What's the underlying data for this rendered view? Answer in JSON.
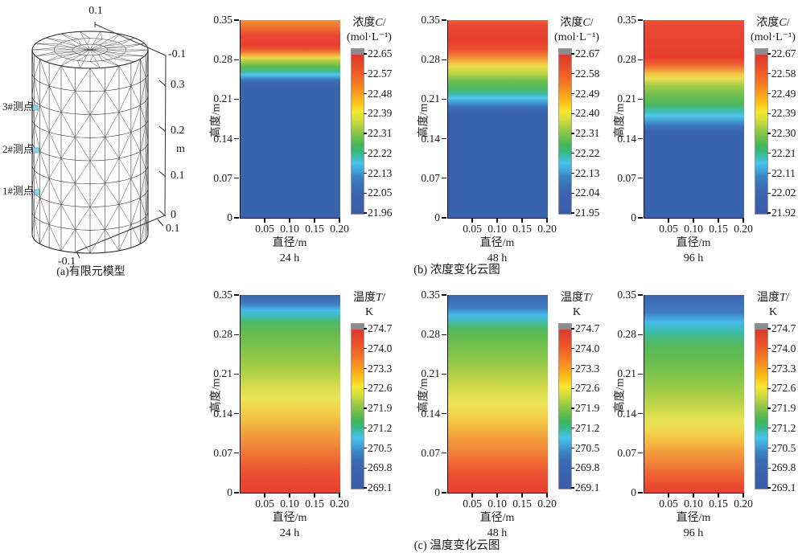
{
  "figure": {
    "model_panel": {
      "caption": "(a)有限元模型",
      "probes": [
        "3#测点",
        "2#测点",
        "1#测点"
      ],
      "axis": {
        "top": "0.1",
        "right_labels": [
          "-0.1",
          "0.3",
          "0.2",
          "0.1",
          "0"
        ],
        "unit": "m",
        "near_bottom": "0.1",
        "bottom": "-0.1"
      }
    },
    "captions": {
      "b": "(b) 浓度变化云图",
      "c": "(c) 温度变化云图"
    }
  },
  "chart_data": [
    {
      "type": "heatmap",
      "group": "concentration",
      "time_label": "24 h",
      "xlabel": "直径/m",
      "ylabel": "高度/m",
      "xlim": [
        0,
        0.2
      ],
      "ylim": [
        0,
        0.35
      ],
      "x_ticks": [
        0.05,
        0.1,
        0.15,
        0.2
      ],
      "x_tick_labels": [
        "0.05",
        "0.10",
        "0.15",
        "0.20"
      ],
      "y_ticks": [
        0,
        0.07,
        0.14,
        0.21,
        0.28,
        0.35
      ],
      "y_tick_labels": [
        "0",
        "0.07",
        "0.14",
        "0.21",
        "0.28",
        "0.35"
      ],
      "colorbar": {
        "title_prefix": "浓度",
        "title_var": "C",
        "title_slash": "/",
        "title_unit": "(mol·L⁻¹)",
        "tick_labels": [
          "22.65",
          "22.57",
          "22.48",
          "22.39",
          "22.31",
          "22.22",
          "22.13",
          "22.05",
          "21.96"
        ]
      },
      "profile_height_vs_value": [
        [
          0,
          21.96
        ],
        [
          0.2,
          21.97
        ],
        [
          0.235,
          22.05
        ],
        [
          0.25,
          22.22
        ],
        [
          0.26,
          22.39
        ],
        [
          0.275,
          22.48
        ],
        [
          0.29,
          22.57
        ],
        [
          0.31,
          22.65
        ],
        [
          0.33,
          22.6
        ],
        [
          0.35,
          22.5
        ]
      ],
      "gradient_stops": [
        [
          0,
          "#f0923a"
        ],
        [
          0.04,
          "#ef6c31"
        ],
        [
          0.08,
          "#e84733"
        ],
        [
          0.13,
          "#e73e30"
        ],
        [
          0.155,
          "#ee6530"
        ],
        [
          0.175,
          "#f4a838"
        ],
        [
          0.19,
          "#edd74c"
        ],
        [
          0.21,
          "#a4cc45"
        ],
        [
          0.235,
          "#62ba4e"
        ],
        [
          0.26,
          "#3dbb92"
        ],
        [
          0.275,
          "#55c5e8"
        ],
        [
          0.29,
          "#3f9ed6"
        ],
        [
          0.305,
          "#3a70b6"
        ],
        [
          0.33,
          "#3a63ad"
        ],
        [
          1,
          "#3a63ad"
        ]
      ]
    },
    {
      "type": "heatmap",
      "group": "concentration",
      "time_label": "48 h",
      "xlabel": "直径/m",
      "ylabel": "高度/m",
      "xlim": [
        0,
        0.2
      ],
      "ylim": [
        0,
        0.35
      ],
      "x_ticks": [
        0.05,
        0.1,
        0.15,
        0.2
      ],
      "x_tick_labels": [
        "0.05",
        "0.10",
        "0.15",
        "0.20"
      ],
      "y_ticks": [
        0,
        0.07,
        0.14,
        0.21,
        0.28,
        0.35
      ],
      "y_tick_labels": [
        "0",
        "0.07",
        "0.14",
        "0.21",
        "0.28",
        "0.35"
      ],
      "colorbar": {
        "title_prefix": "浓度",
        "title_var": "C",
        "title_slash": "/",
        "title_unit": "(mol·L⁻¹)",
        "tick_labels": [
          "22.67",
          "22.58",
          "22.49",
          "22.40",
          "22.31",
          "22.22",
          "22.13",
          "22.04",
          "21.95"
        ]
      },
      "profile_height_vs_value": [
        [
          0,
          21.95
        ],
        [
          0.19,
          21.97
        ],
        [
          0.205,
          22.04
        ],
        [
          0.215,
          22.13
        ],
        [
          0.23,
          22.31
        ],
        [
          0.25,
          22.4
        ],
        [
          0.27,
          22.49
        ],
        [
          0.29,
          22.58
        ],
        [
          0.31,
          22.67
        ],
        [
          0.35,
          22.62
        ]
      ],
      "gradient_stops": [
        [
          0,
          "#ee6031"
        ],
        [
          0.03,
          "#e84733"
        ],
        [
          0.1,
          "#e73e30"
        ],
        [
          0.15,
          "#ea512f"
        ],
        [
          0.18,
          "#f07c33"
        ],
        [
          0.21,
          "#f5b43c"
        ],
        [
          0.235,
          "#eedd4f"
        ],
        [
          0.27,
          "#bcd443"
        ],
        [
          0.31,
          "#6cbe51"
        ],
        [
          0.35,
          "#4ab860"
        ],
        [
          0.375,
          "#3cbcb4"
        ],
        [
          0.395,
          "#55c5e8"
        ],
        [
          0.415,
          "#3f9ed6"
        ],
        [
          0.44,
          "#3a70b6"
        ],
        [
          0.47,
          "#3a63ad"
        ],
        [
          1,
          "#3a63ad"
        ]
      ]
    },
    {
      "type": "heatmap",
      "group": "concentration",
      "time_label": "96 h",
      "xlabel": "直径/m",
      "ylabel": "高度/m",
      "xlim": [
        0,
        0.2
      ],
      "ylim": [
        0,
        0.35
      ],
      "x_ticks": [
        0.05,
        0.1,
        0.15,
        0.2
      ],
      "x_tick_labels": [
        "0.05",
        "0.10",
        "0.15",
        "0.20"
      ],
      "y_ticks": [
        0,
        0.07,
        0.14,
        0.21,
        0.28,
        0.35
      ],
      "y_tick_labels": [
        "0",
        "0.07",
        "0.14",
        "0.21",
        "0.28",
        "0.35"
      ],
      "colorbar": {
        "title_prefix": "浓度",
        "title_var": "C",
        "title_slash": "/",
        "title_unit": "(mol·L⁻¹)",
        "tick_labels": [
          "22.67",
          "22.58",
          "22.49",
          "22.39",
          "22.30",
          "22.21",
          "22.11",
          "22.02",
          "21.92"
        ]
      },
      "profile_height_vs_value": [
        [
          0,
          21.92
        ],
        [
          0.15,
          21.95
        ],
        [
          0.17,
          22.02
        ],
        [
          0.18,
          22.11
        ],
        [
          0.2,
          22.3
        ],
        [
          0.22,
          22.39
        ],
        [
          0.24,
          22.49
        ],
        [
          0.26,
          22.58
        ],
        [
          0.28,
          22.67
        ],
        [
          0.35,
          22.67
        ]
      ],
      "gradient_stops": [
        [
          0,
          "#ec5a31"
        ],
        [
          0.03,
          "#e84733"
        ],
        [
          0.19,
          "#e73e30"
        ],
        [
          0.225,
          "#ed6330"
        ],
        [
          0.25,
          "#f29339"
        ],
        [
          0.275,
          "#f3c943"
        ],
        [
          0.295,
          "#e9dd52"
        ],
        [
          0.33,
          "#a8cc46"
        ],
        [
          0.38,
          "#6cbe51"
        ],
        [
          0.43,
          "#4ab860"
        ],
        [
          0.46,
          "#3cbcb4"
        ],
        [
          0.485,
          "#55c5e8"
        ],
        [
          0.51,
          "#3f9ed6"
        ],
        [
          0.54,
          "#3a70b6"
        ],
        [
          0.57,
          "#3a63ad"
        ],
        [
          1,
          "#3a63ad"
        ]
      ]
    },
    {
      "type": "heatmap",
      "group": "temperature",
      "time_label": "24 h",
      "xlabel": "直径/m",
      "ylabel": "高度/m",
      "xlim": [
        0,
        0.2
      ],
      "ylim": [
        0,
        0.35
      ],
      "x_ticks": [
        0.05,
        0.1,
        0.15,
        0.2
      ],
      "x_tick_labels": [
        "0.05",
        "0.10",
        "0.15",
        "0.20"
      ],
      "y_ticks": [
        0,
        0.07,
        0.14,
        0.21,
        0.28,
        0.35
      ],
      "y_tick_labels": [
        "0",
        "0.07",
        "0.14",
        "0.21",
        "0.28",
        "0.35"
      ],
      "colorbar": {
        "title_prefix": "温度",
        "title_var": "T",
        "title_slash": "/",
        "title_unit": "K",
        "tick_labels": [
          "274.7",
          "274.0",
          "273.3",
          "272.6",
          "271.9",
          "271.2",
          "270.5",
          "269.8",
          "269.1"
        ]
      },
      "profile_height_vs_value": [
        [
          0,
          274.7
        ],
        [
          0.05,
          274.4
        ],
        [
          0.1,
          274.0
        ],
        [
          0.15,
          273.4
        ],
        [
          0.19,
          273.3
        ],
        [
          0.23,
          272.6
        ],
        [
          0.27,
          271.9
        ],
        [
          0.3,
          271.2
        ],
        [
          0.32,
          270.5
        ],
        [
          0.335,
          269.8
        ],
        [
          0.35,
          269.3
        ]
      ],
      "gradient_stops": [
        [
          0,
          "#3a63ad"
        ],
        [
          0.045,
          "#3f7ec2"
        ],
        [
          0.075,
          "#45b8e8"
        ],
        [
          0.105,
          "#3fbdbd"
        ],
        [
          0.135,
          "#4bb96c"
        ],
        [
          0.18,
          "#62ba4e"
        ],
        [
          0.25,
          "#77c24d"
        ],
        [
          0.33,
          "#95c848"
        ],
        [
          0.4,
          "#b4d146"
        ],
        [
          0.46,
          "#d5dc4e"
        ],
        [
          0.52,
          "#ede35a"
        ],
        [
          0.58,
          "#f2d349"
        ],
        [
          0.64,
          "#f3bb40"
        ],
        [
          0.7,
          "#f39f3e"
        ],
        [
          0.76,
          "#f2873b"
        ],
        [
          0.82,
          "#ef6f34"
        ],
        [
          0.88,
          "#eb5632"
        ],
        [
          0.94,
          "#e84733"
        ],
        [
          1,
          "#e74133"
        ]
      ]
    },
    {
      "type": "heatmap",
      "group": "temperature",
      "time_label": "48 h",
      "xlabel": "直径/m",
      "ylabel": "高度/m",
      "xlim": [
        0,
        0.2
      ],
      "ylim": [
        0,
        0.35
      ],
      "x_ticks": [
        0.05,
        0.1,
        0.15,
        0.2
      ],
      "x_tick_labels": [
        "0.05",
        "0.10",
        "0.15",
        "0.20"
      ],
      "y_ticks": [
        0,
        0.07,
        0.14,
        0.21,
        0.28,
        0.35
      ],
      "y_tick_labels": [
        "0",
        "0.07",
        "0.14",
        "0.21",
        "0.28",
        "0.35"
      ],
      "colorbar": {
        "title_prefix": "温度",
        "title_var": "T",
        "title_slash": "/",
        "title_unit": "K",
        "tick_labels": [
          "274.7",
          "274.0",
          "273.3",
          "272.6",
          "271.9",
          "271.2",
          "270.5",
          "269.8",
          "269.1"
        ]
      },
      "profile_height_vs_value": [
        [
          0,
          274.6
        ],
        [
          0.05,
          274.2
        ],
        [
          0.11,
          273.6
        ],
        [
          0.16,
          273.2
        ],
        [
          0.21,
          272.5
        ],
        [
          0.25,
          271.9
        ],
        [
          0.28,
          271.2
        ],
        [
          0.3,
          270.5
        ],
        [
          0.32,
          269.8
        ],
        [
          0.35,
          269.1
        ]
      ],
      "gradient_stops": [
        [
          0,
          "#3a63ad"
        ],
        [
          0.065,
          "#3f7ec2"
        ],
        [
          0.1,
          "#45b8e8"
        ],
        [
          0.13,
          "#3fbdbd"
        ],
        [
          0.16,
          "#4bb96c"
        ],
        [
          0.21,
          "#62ba4e"
        ],
        [
          0.28,
          "#7bc34c"
        ],
        [
          0.36,
          "#9cca47"
        ],
        [
          0.43,
          "#bdd447"
        ],
        [
          0.49,
          "#dcde51"
        ],
        [
          0.55,
          "#ede35a"
        ],
        [
          0.61,
          "#f2d349"
        ],
        [
          0.67,
          "#f3b940"
        ],
        [
          0.73,
          "#f39c3d"
        ],
        [
          0.79,
          "#f2843a"
        ],
        [
          0.85,
          "#ef6a33"
        ],
        [
          0.91,
          "#ea5131"
        ],
        [
          1,
          "#e74133"
        ]
      ]
    },
    {
      "type": "heatmap",
      "group": "temperature",
      "time_label": "96 h",
      "xlabel": "直径/m",
      "ylabel": "高度/m",
      "xlim": [
        0,
        0.2
      ],
      "ylim": [
        0,
        0.35
      ],
      "x_ticks": [
        0.05,
        0.1,
        0.15,
        0.2
      ],
      "x_tick_labels": [
        "0.05",
        "0.10",
        "0.15",
        "0.20"
      ],
      "y_ticks": [
        0,
        0.07,
        0.14,
        0.21,
        0.28,
        0.35
      ],
      "y_tick_labels": [
        "0",
        "0.07",
        "0.14",
        "0.21",
        "0.28",
        "0.35"
      ],
      "colorbar": {
        "title_prefix": "温度",
        "title_var": "T",
        "title_slash": "/",
        "title_unit": "K",
        "tick_labels": [
          "274.7",
          "274.0",
          "273.3",
          "272.6",
          "271.9",
          "271.2",
          "270.5",
          "269.8",
          "269.1"
        ]
      },
      "profile_height_vs_value": [
        [
          0,
          274.5
        ],
        [
          0.04,
          274.0
        ],
        [
          0.09,
          273.4
        ],
        [
          0.13,
          272.9
        ],
        [
          0.18,
          272.3
        ],
        [
          0.22,
          271.8
        ],
        [
          0.26,
          271.2
        ],
        [
          0.285,
          270.5
        ],
        [
          0.31,
          269.8
        ],
        [
          0.35,
          269.1
        ]
      ],
      "gradient_stops": [
        [
          0,
          "#3a63ad"
        ],
        [
          0.09,
          "#3f7ec2"
        ],
        [
          0.135,
          "#45b8e8"
        ],
        [
          0.175,
          "#3fbdbd"
        ],
        [
          0.21,
          "#43ba86"
        ],
        [
          0.26,
          "#55b95a"
        ],
        [
          0.33,
          "#68bd4f"
        ],
        [
          0.42,
          "#84c54b"
        ],
        [
          0.5,
          "#a5cd47"
        ],
        [
          0.57,
          "#c8d74b"
        ],
        [
          0.63,
          "#e5e156"
        ],
        [
          0.68,
          "#f0da4e"
        ],
        [
          0.73,
          "#f3c243"
        ],
        [
          0.78,
          "#f3a43e"
        ],
        [
          0.84,
          "#f2883b"
        ],
        [
          0.9,
          "#ee6933"
        ],
        [
          0.96,
          "#e94c31"
        ],
        [
          1,
          "#e74133"
        ]
      ]
    }
  ],
  "colorbar_gradient": [
    [
      0,
      "#dd3a2c"
    ],
    [
      0.05,
      "#e5452a"
    ],
    [
      0.11,
      "#ee5a28"
    ],
    [
      0.18,
      "#f37a23"
    ],
    [
      0.25,
      "#f8a11d"
    ],
    [
      0.31,
      "#fbc618"
    ],
    [
      0.36,
      "#f5e832"
    ],
    [
      0.41,
      "#d4dd3a"
    ],
    [
      0.46,
      "#a5cd43"
    ],
    [
      0.52,
      "#6fbf4c"
    ],
    [
      0.57,
      "#42b654"
    ],
    [
      0.61,
      "#36b87d"
    ],
    [
      0.645,
      "#3bbdb7"
    ],
    [
      0.68,
      "#49c3ea"
    ],
    [
      0.72,
      "#3faadf"
    ],
    [
      0.765,
      "#3b87c6"
    ],
    [
      0.82,
      "#3a6eb5"
    ],
    [
      0.9,
      "#3a62ae"
    ],
    [
      1,
      "#3a5ca9"
    ]
  ],
  "colorbar_cap_color": "#8c8c8c"
}
